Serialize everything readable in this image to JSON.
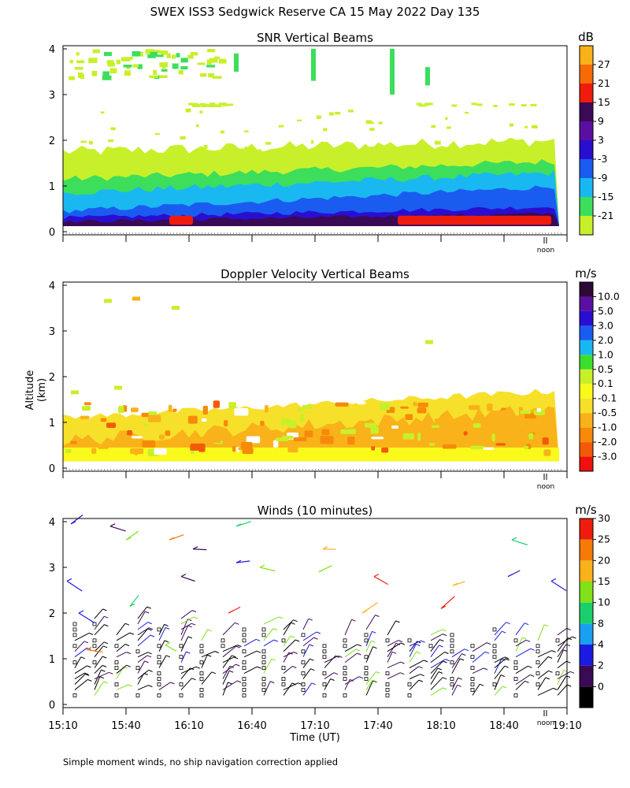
{
  "figure": {
    "title": "SWEX ISS3 Sedgwick Reserve CA  15 May 2022 Day 135",
    "ylabel": "Altitude (km)",
    "xlabel": "Time (UT)",
    "footnote": "Simple moment winds, no ship navigation correction applied",
    "noon_label": "noon"
  },
  "chart_data": [
    {
      "type": "heatmap",
      "title": "SNR Vertical Beams",
      "units": "dB",
      "ylim": [
        0,
        4
      ],
      "yticks": [
        "0",
        "1",
        "2",
        "3",
        "4"
      ],
      "colorbar": {
        "colors": [
          "#c8f02a",
          "#3cde5c",
          "#1ab8f0",
          "#1a5cf0",
          "#2a0ed0",
          "#5a0fa0",
          "#3a0a55",
          "#ee1c0c",
          "#f66a08",
          "#f9b21a"
        ],
        "labels": [
          "-21",
          "-15",
          "-9",
          "-3",
          "3",
          "9",
          "15",
          "21",
          "27"
        ]
      }
    },
    {
      "type": "heatmap",
      "title": "Doppler Velocity Vertical Beams",
      "units": "m/s",
      "ylim": [
        0,
        4
      ],
      "yticks": [
        "0",
        "1",
        "2",
        "3",
        "4"
      ],
      "colorbar": {
        "colors": [
          "#f01010",
          "#f25a0a",
          "#f78a0a",
          "#f9b21a",
          "#f6e02a",
          "#f9f91a",
          "#c8f02a",
          "#3cde2c",
          "#1ab8f0",
          "#1a5cf0",
          "#2a0ed0",
          "#5a0fa0",
          "#2a0a35"
        ],
        "labels": [
          "-3.0",
          "-2.0",
          "-1.0",
          "-0.5",
          "-0.1",
          "0.1",
          "0.5",
          "1.0",
          "2.0",
          "3.0",
          "5.0",
          "10.0"
        ]
      }
    },
    {
      "type": "scatter",
      "title": "Winds (10 minutes)",
      "units": "m/s",
      "ylim": [
        0,
        4
      ],
      "yticks": [
        "0",
        "1",
        "2",
        "3",
        "4"
      ],
      "xlim": [
        "15:10",
        "19:10"
      ],
      "xticks": [
        "15:10",
        "15:40",
        "16:10",
        "16:40",
        "17:10",
        "17:40",
        "18:10",
        "18:40",
        "19:10"
      ],
      "colorbar": {
        "colors": [
          "#000000",
          "#3a0a55",
          "#1a1ae0",
          "#1aa0f0",
          "#1ad06a",
          "#80e01a",
          "#f9b21a",
          "#f67a08",
          "#ee1c0c"
        ],
        "labels": [
          "0",
          "2",
          "4",
          "8",
          "10",
          "15",
          "20",
          "25",
          "30"
        ]
      }
    }
  ]
}
